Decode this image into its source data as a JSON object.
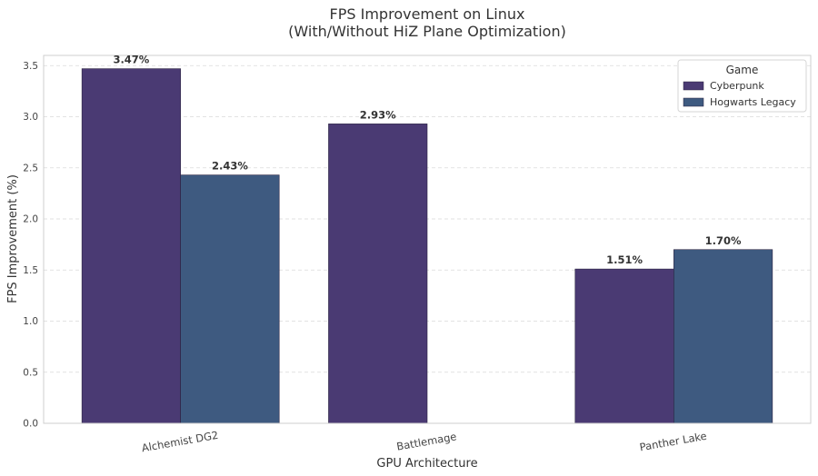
{
  "chart_data": {
    "type": "bar",
    "title": "FPS Improvement on Linux",
    "subtitle": "(With/Without HiZ Plane Optimization)",
    "xlabel": "GPU Architecture",
    "ylabel": "FPS Improvement (%)",
    "categories": [
      "Alchemist DG2",
      "Battlemage",
      "Panther Lake"
    ],
    "series": [
      {
        "name": "Cyberpunk",
        "color": "#4a3a73",
        "values": [
          3.47,
          2.93,
          1.51
        ],
        "labels": [
          "3.47%",
          "2.93%",
          "1.51%"
        ]
      },
      {
        "name": "Hogwarts Legacy",
        "color": "#3e5a80",
        "values": [
          2.43,
          null,
          1.7
        ],
        "labels": [
          "2.43%",
          null,
          "1.70%"
        ]
      }
    ],
    "ylim": [
      0,
      3.6
    ],
    "yticks": [
      "0.0",
      "0.5",
      "1.0",
      "1.5",
      "2.0",
      "2.5",
      "3.0",
      "3.5"
    ],
    "grid": true,
    "legend": {
      "title": "Game",
      "placement": "top-right"
    }
  }
}
